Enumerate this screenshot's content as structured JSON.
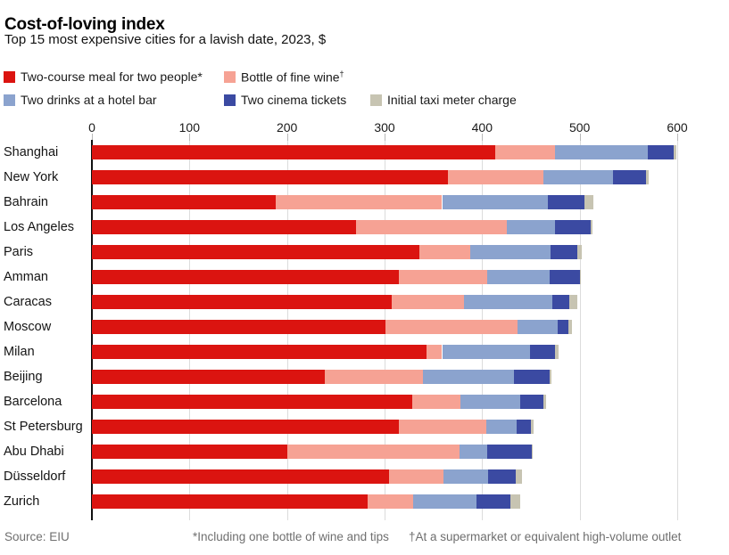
{
  "title": "Cost-of-loving index",
  "subtitle": "Top 15 most expensive cities for a lavish date, 2023, $",
  "colors": {
    "meal": "#db1410",
    "wine": "#f6a294",
    "drinks": "#8ba3ce",
    "cinema": "#3b4aa2",
    "taxi": "#c7c4b2",
    "gridline": "#dcdcdc",
    "axis": "#111111",
    "footer_text": "#6f6f6f"
  },
  "legend": {
    "items": [
      {
        "label": "Two-course meal for two people*",
        "color_key": "meal",
        "row": 0,
        "x": 4
      },
      {
        "label": "Bottle of fine wine†",
        "color_key": "wine",
        "row": 0,
        "x": 251
      },
      {
        "label": "Two drinks at a hotel bar",
        "color_key": "drinks",
        "row": 1,
        "x": 4
      },
      {
        "label": "Two cinema tickets",
        "color_key": "cinema",
        "row": 1,
        "x": 251
      },
      {
        "label": "Initial taxi meter charge",
        "color_key": "taxi",
        "row": 1,
        "x": 415
      }
    ]
  },
  "chart_data": {
    "type": "bar",
    "orientation": "horizontal",
    "stacked": true,
    "unit": "$",
    "title": "Cost-of-loving index",
    "subtitle": "Top 15 most expensive cities for a lavish date, 2023, $",
    "xlabel": "",
    "ylabel": "",
    "xlim": [
      0,
      600
    ],
    "xticks": [
      0,
      100,
      200,
      300,
      400,
      500,
      600
    ],
    "grid": "vertical",
    "legend_position": "top",
    "categories": [
      "Shanghai",
      "New York",
      "Bahrain",
      "Los Angeles",
      "Paris",
      "Amman",
      "Caracas",
      "Moscow",
      "Milan",
      "Beijing",
      "Barcelona",
      "St Petersburg",
      "Abu Dhabi",
      "Düsseldorf",
      "Zurich"
    ],
    "series": [
      {
        "name": "Two-course meal for two people*",
        "color_key": "meal",
        "values": [
          413,
          365,
          188,
          271,
          336,
          315,
          307,
          301,
          343,
          239,
          328,
          315,
          200,
          305,
          283
        ]
      },
      {
        "name": "Bottle of fine wine†",
        "color_key": "wine",
        "values": [
          62,
          98,
          171,
          154,
          52,
          90,
          74,
          135,
          16,
          100,
          50,
          89,
          177,
          55,
          46
        ]
      },
      {
        "name": "Two drinks at a hotel bar",
        "color_key": "drinks",
        "values": [
          95,
          71,
          108,
          50,
          82,
          64,
          91,
          41,
          90,
          94,
          61,
          31,
          28,
          46,
          65
        ]
      },
      {
        "name": "Two cinema tickets",
        "color_key": "cinema",
        "values": [
          26,
          34,
          38,
          36,
          28,
          31,
          17,
          11,
          26,
          36,
          24,
          15,
          46,
          28,
          35
        ]
      },
      {
        "name": "Initial taxi meter charge",
        "color_key": "taxi",
        "values": [
          3,
          3,
          9,
          2,
          4,
          1,
          9,
          4,
          3,
          2,
          3,
          3,
          1,
          7,
          10
        ]
      }
    ],
    "totals": [
      599,
      571,
      514,
      513,
      502,
      501,
      498,
      492,
      478,
      471,
      466,
      453,
      452,
      441,
      439
    ]
  },
  "footer": {
    "source": "Source: EIU",
    "note1": "*Including one bottle of wine and tips",
    "note2": "†At a supermarket or equivalent high-volume outlet"
  }
}
